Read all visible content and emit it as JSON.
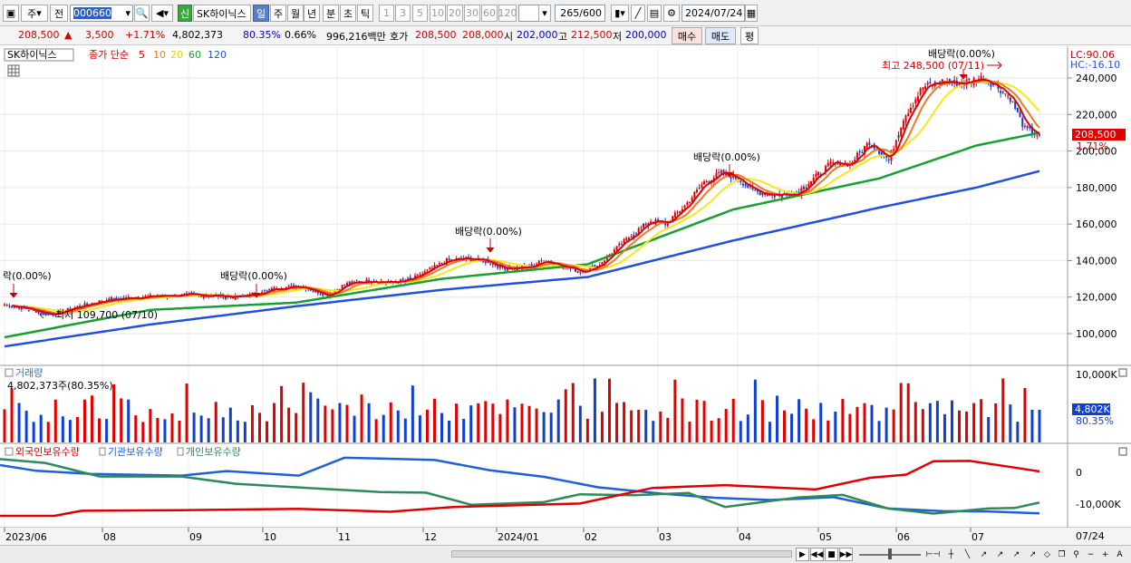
{
  "toolbar": {
    "market_type": "주",
    "prev_label": "전",
    "stock_code": "000660",
    "stock_name": "SK하이닉스",
    "new_badge": "신",
    "period_buttons": [
      "일",
      "주",
      "월",
      "년",
      "분",
      "초",
      "틱"
    ],
    "selected_period": "일",
    "minute_buttons": [
      "1",
      "3",
      "5",
      "10",
      "20",
      "30",
      "60",
      "120"
    ],
    "count_value": "265",
    "count_total": "/600",
    "date_value": "2024/07/24"
  },
  "quote": {
    "price": "208,500",
    "change_symbol": "▲",
    "change": "3,500",
    "change_pct": "+1.71%",
    "volume": "4,802,373",
    "vol_ratio": "80.35%",
    "turnover": "0.66%",
    "amount": "996,216백만",
    "bid_label": "호가",
    "bid1": "208,500",
    "bid2": "208,000",
    "open_label": "시",
    "open": "202,000",
    "high_label": "고",
    "high": "212,500",
    "low_label": "저",
    "low": "200,000",
    "buy_label": "매수",
    "sell_label": "매도",
    "eval_label": "평"
  },
  "price_panel": {
    "stock_name": "SK하이닉스",
    "ma_title": "종가 단순",
    "ma_periods": [
      "5",
      "10",
      "20",
      "60",
      "120"
    ],
    "lc_label": "LC:90.06",
    "hc_label": "HC:-16.10",
    "high_annotation": "최고 248,500 (07/11)",
    "low_annotation": "최저 109,700 (07/10)",
    "current_price_tag": "208,500",
    "current_pct_tag": "1.71%",
    "dividend_label": "배당락(0.00%)",
    "dividend_partial": "락(0.00%)"
  },
  "volume_panel": {
    "title": "거래량",
    "value_text": "4,802,373주(80.35%)",
    "axis_top": "10,000K",
    "current_tag": "4,802K",
    "current_pct": "80.35%"
  },
  "holdings_panel": {
    "series_labels": [
      "외국인보유수량",
      "기관보유수량",
      "개인보유수량"
    ],
    "axis_labels": [
      "0",
      "-10,000K"
    ]
  },
  "date_axis": [
    "2023/06",
    "08",
    "09",
    "10",
    "11",
    "12",
    "2024/01",
    "02",
    "03",
    "04",
    "05",
    "06",
    "07"
  ],
  "date_axis_end": "07/24",
  "colors": {
    "up": "#e00000",
    "down": "#1040d0",
    "ma5": "#e00000",
    "ma10": "#f07820",
    "ma20": "#f8e818",
    "ma60": "#18a030",
    "ma120": "#2050e0",
    "foreign": "#e00000",
    "institution": "#1f60d8",
    "individual": "#2e8b57"
  },
  "chart_data": {
    "type": "candlestick",
    "price_axis": [
      "240,000",
      "220,000",
      "200,000",
      "180,000",
      "160,000",
      "140,000",
      "120,000",
      "100,000"
    ],
    "price_range": [
      90060,
      249000
    ],
    "months_x": [
      "2023/06",
      "08",
      "09",
      "10",
      "11",
      "12",
      "2024/01",
      "02",
      "03",
      "04",
      "05",
      "06",
      "07",
      "07/24"
    ],
    "close_path": [
      [
        0,
        116000
      ],
      [
        8,
        114000
      ],
      [
        14,
        112000
      ],
      [
        20,
        110500
      ],
      [
        28,
        114000
      ],
      [
        40,
        118000
      ],
      [
        55,
        120000
      ],
      [
        70,
        121000
      ],
      [
        85,
        121000
      ],
      [
        95,
        120000
      ],
      [
        105,
        122000
      ],
      [
        112,
        125000
      ],
      [
        122,
        126000
      ],
      [
        133,
        121000
      ],
      [
        140,
        127000
      ],
      [
        150,
        129000
      ],
      [
        160,
        128000
      ],
      [
        168,
        130000
      ],
      [
        175,
        135000
      ],
      [
        182,
        140000
      ],
      [
        190,
        141000
      ],
      [
        198,
        140000
      ],
      [
        205,
        136000
      ],
      [
        215,
        136000
      ],
      [
        222,
        140000
      ],
      [
        230,
        137000
      ],
      [
        237,
        134000
      ],
      [
        244,
        137000
      ],
      [
        252,
        147000
      ],
      [
        259,
        155000
      ],
      [
        266,
        162000
      ],
      [
        272,
        160000
      ],
      [
        280,
        170000
      ],
      [
        288,
        183000
      ],
      [
        295,
        188000
      ],
      [
        302,
        185000
      ],
      [
        308,
        178000
      ],
      [
        318,
        176000
      ],
      [
        326,
        177000
      ],
      [
        334,
        186000
      ],
      [
        340,
        193000
      ],
      [
        348,
        193000
      ],
      [
        356,
        205000
      ],
      [
        364,
        195000
      ],
      [
        370,
        218000
      ],
      [
        378,
        235000
      ],
      [
        386,
        238000
      ],
      [
        394,
        237000
      ],
      [
        402,
        240000
      ],
      [
        408,
        236000
      ],
      [
        414,
        229000
      ],
      [
        420,
        212000
      ],
      [
        426,
        208500
      ]
    ],
    "ma60_path": [
      [
        0,
        98000
      ],
      [
        60,
        113000
      ],
      [
        120,
        117000
      ],
      [
        180,
        130000
      ],
      [
        240,
        138000
      ],
      [
        300,
        168000
      ],
      [
        360,
        185000
      ],
      [
        400,
        203000
      ],
      [
        426,
        210000
      ]
    ],
    "ma120_path": [
      [
        0,
        93000
      ],
      [
        60,
        105000
      ],
      [
        120,
        115000
      ],
      [
        180,
        124000
      ],
      [
        240,
        131000
      ],
      [
        300,
        151000
      ],
      [
        360,
        169000
      ],
      [
        400,
        180000
      ],
      [
        426,
        189000
      ]
    ],
    "volume_max_k": 10000,
    "holdings_range_k": [
      -14000,
      4000
    ],
    "last_close": 208500,
    "last_volume_k": 4802
  }
}
